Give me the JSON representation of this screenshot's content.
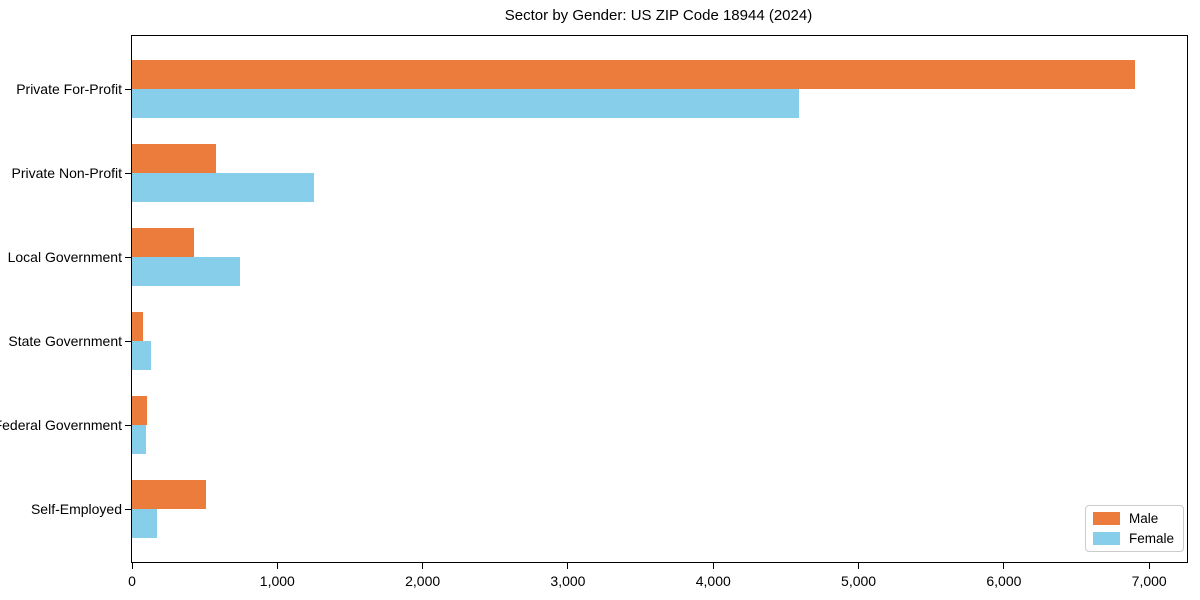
{
  "chart_data": {
    "type": "bar",
    "orientation": "horizontal",
    "title": "Sector by Gender: US ZIP Code 18944 (2024)",
    "categories": [
      "Private For-Profit",
      "Private Non-Profit",
      "Local Government",
      "State Government",
      "Federal Government",
      "Self-Employed"
    ],
    "series": [
      {
        "name": "Male",
        "color": "#EC7C3C",
        "values": [
          6900,
          580,
          425,
          75,
          100,
          510
        ]
      },
      {
        "name": "Female",
        "color": "#87CEEB",
        "values": [
          4590,
          1250,
          740,
          130,
          95,
          170
        ]
      }
    ],
    "xlim": [
      0,
      7260
    ],
    "xticks": [
      0,
      1000,
      2000,
      3000,
      4000,
      5000,
      6000,
      7000
    ],
    "xtick_labels": [
      "0",
      "1,000",
      "2,000",
      "3,000",
      "4,000",
      "5,000",
      "6,000",
      "7,000"
    ],
    "ylabel": "",
    "xlabel": "",
    "grid": false,
    "legend_position": "lower right",
    "spine_color": "#000000",
    "text_color": "#000000"
  }
}
